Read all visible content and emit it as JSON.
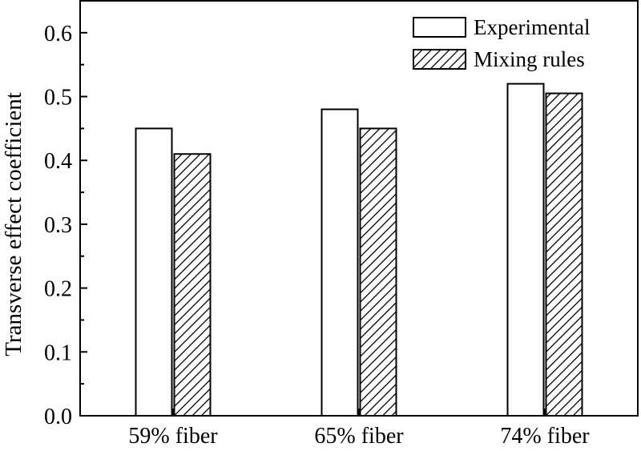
{
  "chart_data": {
    "type": "bar",
    "categories": [
      "59% fiber",
      "65% fiber",
      "74% fiber"
    ],
    "series": [
      {
        "name": "Experimental",
        "values": [
          0.45,
          0.48,
          0.52
        ],
        "fill": "#ffffff",
        "pattern": "none"
      },
      {
        "name": "Mixing rules",
        "values": [
          0.41,
          0.45,
          0.505
        ],
        "fill": "#ffffff",
        "pattern": "diagonal-hatch"
      }
    ],
    "title": "",
    "xlabel": "",
    "ylabel": "Transverse effect coefficient",
    "ylim": [
      0,
      0.65
    ],
    "yticks": [
      0.0,
      0.1,
      0.2,
      0.3,
      0.4,
      0.5,
      0.6
    ],
    "ytick_labels": [
      "0.0",
      "0.1",
      "0.2",
      "0.3",
      "0.4",
      "0.5",
      "0.6"
    ],
    "grid": false,
    "legend_position": "top-right"
  }
}
